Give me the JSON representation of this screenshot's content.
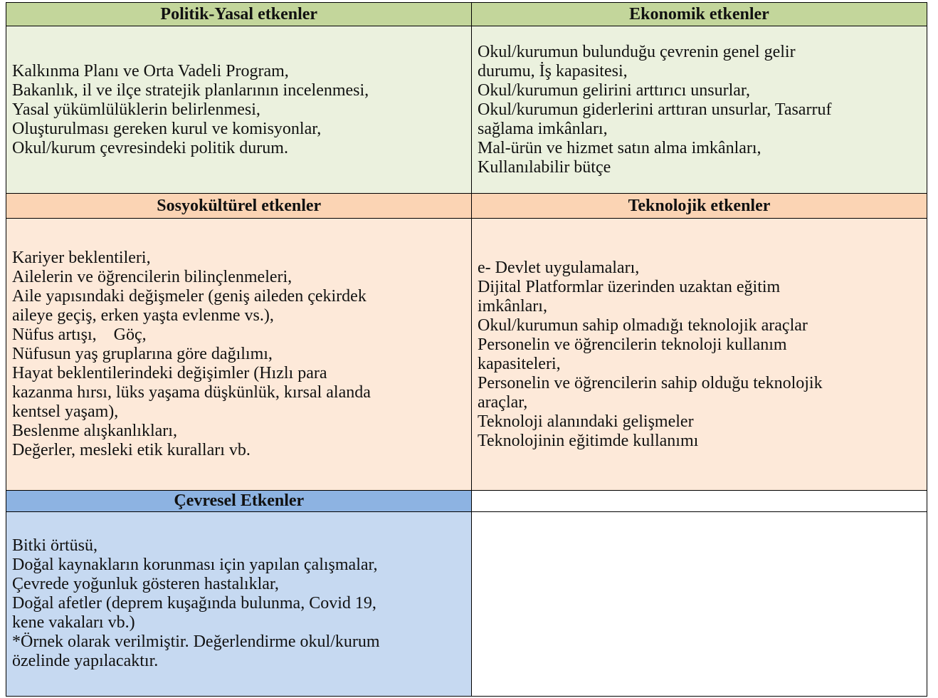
{
  "cells": [
    {
      "title": "Politik-Yasal etkenler",
      "lines": [
        "Kalkınma Planı ve Orta Vadeli Program,",
        "Bakanlık, il ve ilçe stratejik planlarının incelenmesi,",
        "Yasal yükümlülüklerin belirlenmesi,",
        "Oluşturulması gereken kurul ve komisyonlar,",
        "Okul/kurum çevresindeki politik durum."
      ]
    },
    {
      "title": "Ekonomik etkenler",
      "lines": [
        "Okul/kurumun bulunduğu çevrenin genel gelir",
        "durumu, İş kapasitesi,",
        "Okul/kurumun gelirini arttırıcı unsurlar,",
        "Okul/kurumun giderlerini arttıran unsurlar, Tasarruf",
        "sağlama imkânları,",
        "Mal-ürün ve hizmet satın alma imkânları,",
        "Kullanılabilir bütçe"
      ]
    },
    {
      "title": "Sosyokültürel etkenler",
      "lines": [
        "Kariyer beklentileri,",
        "Ailelerin ve öğrencilerin bilinçlenmeleri,",
        "Aile yapısındaki değişmeler (geniş aileden çekirdek",
        "aileye geçiş, erken yaşta evlenme vs.),",
        "Nüfus artışı,    Göç,",
        "Nüfusun yaş gruplarına göre dağılımı,",
        "Hayat beklentilerindeki değişimler (Hızlı para",
        "kazanma hırsı, lüks yaşama düşkünlük, kırsal alanda",
        "kentsel yaşam),",
        "Beslenme alışkanlıkları,",
        "Değerler, mesleki etik kuralları vb."
      ]
    },
    {
      "title": "Teknolojik etkenler",
      "lines": [
        "e- Devlet uygulamaları,",
        "Dijital Platformlar üzerinden uzaktan eğitim",
        "imkânları,",
        "Okul/kurumun sahip olmadığı teknolojik araçlar",
        "Personelin ve öğrencilerin teknoloji kullanım",
        "kapasiteleri,",
        "Personelin ve öğrencilerin sahip olduğu teknolojik",
        "araçlar,",
        "Teknoloji alanındaki gelişmeler",
        "Teknolojinin eğitimde kullanımı"
      ]
    },
    {
      "title": "Çevresel Etkenler",
      "lines": [
        "Bitki örtüsü,",
        "Doğal kaynakların korunması için yapılan çalışmalar,",
        "Çevrede yoğunluk gösteren hastalıklar,",
        "Doğal afetler (deprem kuşağında bulunma, Covid 19,",
        "kene vakaları vb.)",
        "*Örnek olarak verilmiştir. Değerlendirme okul/kurum",
        "özelinde yapılacaktır."
      ]
    }
  ]
}
